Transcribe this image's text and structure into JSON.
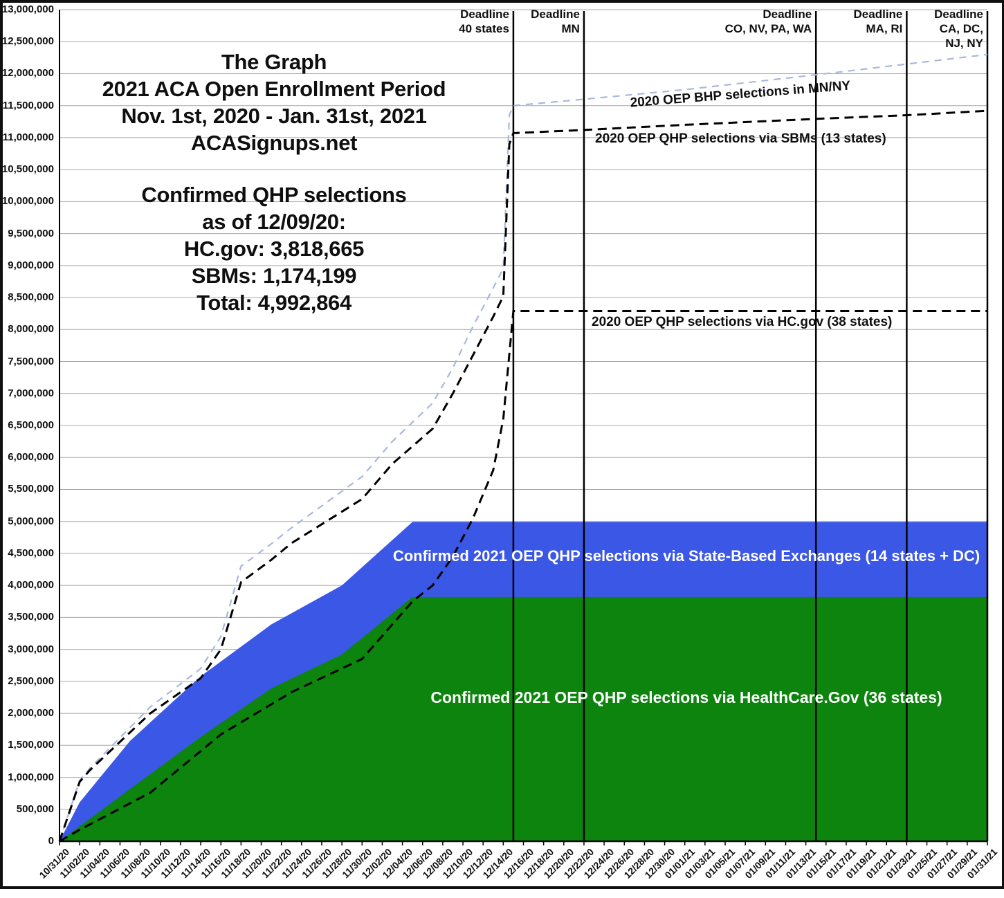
{
  "title_block": {
    "lines": [
      "The Graph",
      "2021 ACA Open Enrollment Period",
      "Nov. 1st, 2020 - Jan. 31st, 2021",
      "ACASignups.net"
    ]
  },
  "stats_block": {
    "lines": [
      "Confirmed QHP selections",
      "as of 12/09/20:",
      "HC.gov: 3,818,665",
      "SBMs: 1,174,199",
      "Total: 4,992,864"
    ]
  },
  "chart_data": {
    "type": "area",
    "grid": "horizontal-only",
    "colors": {
      "hcgov_area": "#0d840d",
      "sbm_area": "#3b57e6",
      "dashed_black": "#000000",
      "dashed_lightblue": "#a9b7de",
      "gridline": "#a8a8a8",
      "deadline_line": "#000000"
    },
    "y_axis": {
      "min": 0,
      "max": 13000000,
      "step": 500000,
      "tick_labels": [
        "0",
        "500,000",
        "1,000,000",
        "1,500,000",
        "2,000,000",
        "2,500,000",
        "3,000,000",
        "3,500,000",
        "4,000,000",
        "4,500,000",
        "5,000,000",
        "5,500,000",
        "6,000,000",
        "6,500,000",
        "7,000,000",
        "7,500,000",
        "8,000,000",
        "8,500,000",
        "9,000,000",
        "9,500,000",
        "10,000,000",
        "10,500,000",
        "11,000,000",
        "11,500,000",
        "12,000,000",
        "12,500,000",
        "13,000,000"
      ]
    },
    "x_axis": {
      "total_days": 92,
      "days_per_tick": 2,
      "tick_labels": [
        "10/31/20",
        "11/02/20",
        "11/04/20",
        "11/06/20",
        "11/08/20",
        "11/10/20",
        "11/12/20",
        "11/14/20",
        "11/16/20",
        "11/18/20",
        "11/20/20",
        "11/22/20",
        "11/24/20",
        "11/26/20",
        "11/28/20",
        "11/30/20",
        "12/02/20",
        "12/04/20",
        "12/06/20",
        "12/08/20",
        "12/10/20",
        "12/12/20",
        "12/14/20",
        "12/16/20",
        "12/18/20",
        "12/20/20",
        "12/22/20",
        "12/24/20",
        "12/26/20",
        "12/28/20",
        "12/30/20",
        "01/01/21",
        "01/03/21",
        "01/05/21",
        "01/07/21",
        "01/09/21",
        "01/11/21",
        "01/13/21",
        "01/15/21",
        "01/17/21",
        "01/19/21",
        "01/21/21",
        "01/23/21",
        "01/25/21",
        "01/27/21",
        "01/29/21",
        "01/31/21"
      ]
    },
    "deadlines": [
      {
        "day": 45,
        "lines": [
          "Deadline",
          "40 states"
        ]
      },
      {
        "day": 52,
        "lines": [
          "Deadline",
          "MN"
        ]
      },
      {
        "day": 75,
        "lines": [
          "Deadline",
          "CO, NV, PA, WA"
        ]
      },
      {
        "day": 84,
        "lines": [
          "Deadline",
          "MA, RI"
        ]
      },
      {
        "day": 92,
        "lines": [
          "Deadline",
          "CA, DC,",
          "NJ, NY"
        ]
      }
    ],
    "series": [
      {
        "id": "hcgov_2021",
        "label": "Confirmed 2021 OEP QHP selections via HealthCare.Gov (36 states)",
        "type": "area",
        "color": "#0d840d",
        "final_value": 3818665,
        "points": [
          [
            0,
            0
          ],
          [
            7,
            818000
          ],
          [
            14,
            1630000
          ],
          [
            21,
            2390000
          ],
          [
            28,
            2920000
          ],
          [
            35,
            3818665
          ],
          [
            92,
            3818665
          ]
        ]
      },
      {
        "id": "total_2021_with_sbm",
        "label": "Confirmed 2021 OEP QHP selections via State-Based Exchanges (14 states + DC)",
        "type": "area",
        "color": "#3b57e6",
        "final_value": 4992864,
        "points": [
          [
            0,
            0
          ],
          [
            2,
            610000
          ],
          [
            7,
            1570000
          ],
          [
            14,
            2580000
          ],
          [
            21,
            3390000
          ],
          [
            28,
            4000000
          ],
          [
            35,
            4992864
          ],
          [
            92,
            4992864
          ]
        ]
      },
      {
        "id": "hcgov_2020",
        "label": "2020 OEP QHP selections via HC.gov (38 states)",
        "type": "dashed-line",
        "color": "#000000",
        "points": [
          [
            0,
            0
          ],
          [
            2,
            180000
          ],
          [
            9,
            760000
          ],
          [
            16,
            1670000
          ],
          [
            23,
            2330000
          ],
          [
            30,
            2850000
          ],
          [
            35,
            3750000
          ],
          [
            37,
            4000000
          ],
          [
            39,
            4450000
          ],
          [
            41,
            5050000
          ],
          [
            43,
            5800000
          ],
          [
            44,
            6600000
          ],
          [
            45,
            8290000
          ],
          [
            92,
            8290000
          ]
        ]
      },
      {
        "id": "sbm_2020",
        "label": "2020 OEP QHP selections via SBMs (13 states)",
        "type": "dashed-line",
        "color": "#000000",
        "points": [
          [
            0,
            0
          ],
          [
            2,
            930000
          ],
          [
            3,
            1110000
          ],
          [
            9,
            2000000
          ],
          [
            14,
            2550000
          ],
          [
            16,
            3000000
          ],
          [
            18,
            4050000
          ],
          [
            21,
            4400000
          ],
          [
            23,
            4660000
          ],
          [
            30,
            5350000
          ],
          [
            33,
            5900000
          ],
          [
            37,
            6450000
          ],
          [
            39,
            7000000
          ],
          [
            41,
            7600000
          ],
          [
            43,
            8200000
          ],
          [
            44,
            8520000
          ],
          [
            44.6,
            10900000
          ],
          [
            45,
            11070000
          ],
          [
            52,
            11120000
          ],
          [
            62,
            11200000
          ],
          [
            76,
            11300000
          ],
          [
            84,
            11350000
          ],
          [
            92,
            11420000
          ]
        ]
      },
      {
        "id": "bhp_2020",
        "label": "2020 OEP BHP selections in MN/NY",
        "type": "dashed-line",
        "color": "#a9b7de",
        "points": [
          [
            0,
            0
          ],
          [
            2,
            950000
          ],
          [
            3,
            1140000
          ],
          [
            9,
            2100000
          ],
          [
            14,
            2700000
          ],
          [
            16,
            3200000
          ],
          [
            18,
            4300000
          ],
          [
            21,
            4650000
          ],
          [
            23,
            4900000
          ],
          [
            30,
            5700000
          ],
          [
            33,
            6250000
          ],
          [
            37,
            6850000
          ],
          [
            39,
            7400000
          ],
          [
            41,
            8050000
          ],
          [
            43,
            8650000
          ],
          [
            44,
            8950000
          ],
          [
            44.6,
            11350000
          ],
          [
            45,
            11500000
          ],
          [
            52,
            11600000
          ],
          [
            62,
            11750000
          ],
          [
            76,
            12000000
          ],
          [
            84,
            12150000
          ],
          [
            92,
            12300000
          ]
        ]
      }
    ]
  }
}
